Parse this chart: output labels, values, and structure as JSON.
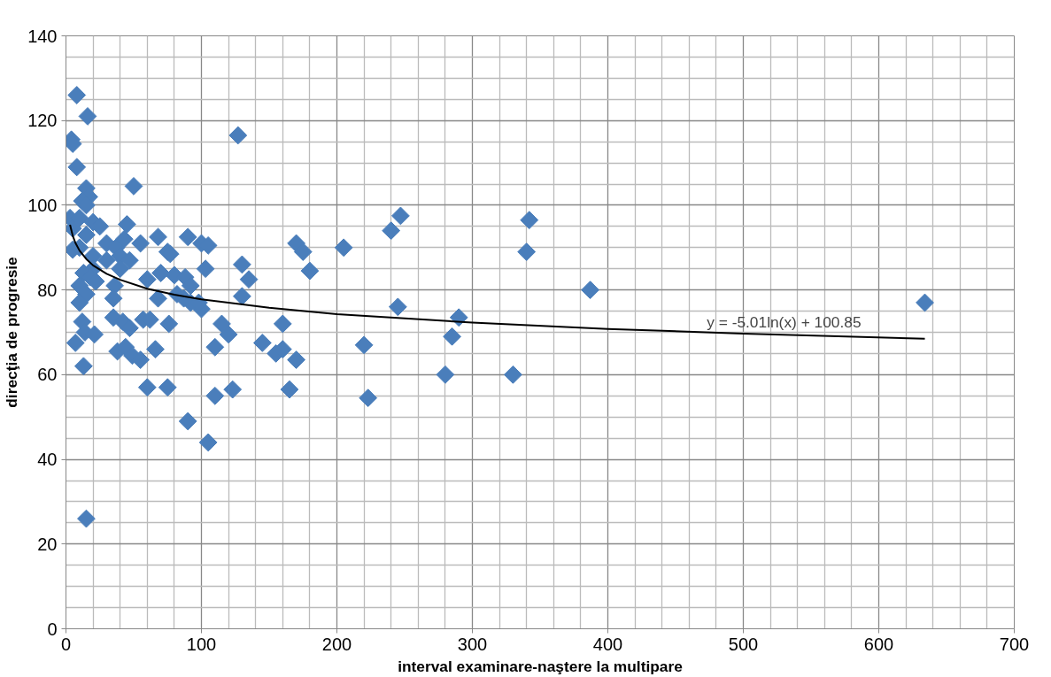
{
  "chart_data": {
    "type": "scatter",
    "xlabel": "interval examinare-naştere la multipare",
    "ylabel": "direcţia de progresie",
    "xlim": [
      0,
      700
    ],
    "ylim": [
      0,
      140
    ],
    "xticks": [
      0,
      100,
      200,
      300,
      400,
      500,
      600,
      700
    ],
    "yticks": [
      0,
      20,
      40,
      60,
      80,
      100,
      120,
      140
    ],
    "grid": true,
    "marker": "diamond",
    "series": [
      {
        "color": "#4a7ebb",
        "x": [
          8,
          16,
          4,
          5,
          8,
          127,
          15,
          50,
          17,
          12,
          15,
          3,
          10,
          20,
          5,
          25,
          45,
          15,
          30,
          37,
          43,
          55,
          68,
          90,
          100,
          105,
          170,
          175,
          205,
          240,
          247,
          342,
          340,
          387,
          634,
          5,
          10,
          20,
          30,
          40,
          47,
          75,
          77,
          130,
          135,
          180,
          103,
          20,
          40,
          60,
          70,
          80,
          88,
          92,
          13,
          10,
          18,
          36,
          35,
          15,
          22,
          10,
          68,
          82,
          87,
          92,
          100,
          98,
          130,
          245,
          290,
          285,
          220,
          35,
          42,
          47,
          57,
          62,
          76,
          115,
          120,
          160,
          12,
          14,
          21,
          7,
          38,
          44,
          49,
          55,
          66,
          110,
          145,
          155,
          160,
          170,
          13,
          60,
          75,
          123,
          165,
          110,
          223,
          280,
          330,
          90,
          105,
          15
        ],
        "values": [
          126,
          121,
          115.5,
          114.5,
          109,
          116.5,
          104,
          104.5,
          102,
          101,
          100,
          97,
          97,
          96,
          94.5,
          95,
          95.5,
          93,
          91,
          90,
          92,
          91,
          92.5,
          92.5,
          91,
          90.5,
          91,
          89,
          90,
          94,
          97.5,
          96.5,
          89,
          80,
          77,
          89.5,
          90,
          88,
          87,
          88,
          87,
          89,
          88.5,
          86,
          82.5,
          84.5,
          85,
          85,
          85,
          82.5,
          84,
          83.5,
          83,
          81,
          84,
          81,
          83,
          81,
          78,
          79,
          82,
          77,
          78,
          79,
          78,
          77,
          75.5,
          77,
          78.5,
          76,
          73.5,
          69,
          67,
          73.5,
          72.5,
          71,
          73,
          73,
          72,
          72,
          69.5,
          72,
          72.5,
          70,
          69.5,
          67.5,
          65.5,
          66.5,
          64.5,
          63.5,
          66,
          66.5,
          67.5,
          65,
          66,
          63.5,
          62,
          57,
          57,
          56.5,
          56.5,
          55,
          54.5,
          60,
          60,
          49,
          44,
          26
        ]
      },
      {
        "type": "line",
        "color": "#000000",
        "marker": "none",
        "x": [
          3,
          5,
          7,
          10,
          15,
          20,
          30,
          40,
          60,
          80,
          100,
          150,
          200,
          300,
          400,
          500,
          634
        ],
        "values": [
          95.4,
          92.8,
          91.1,
          89.3,
          87.3,
          85.8,
          83.8,
          82.4,
          80.3,
          78.9,
          77.8,
          75.8,
          74.3,
          72.3,
          70.8,
          69.7,
          68.5
        ]
      }
    ],
    "annotations": [
      {
        "text": "y = -5.01ln(x) + 100.85",
        "x": 530,
        "y": 69.4
      }
    ]
  }
}
